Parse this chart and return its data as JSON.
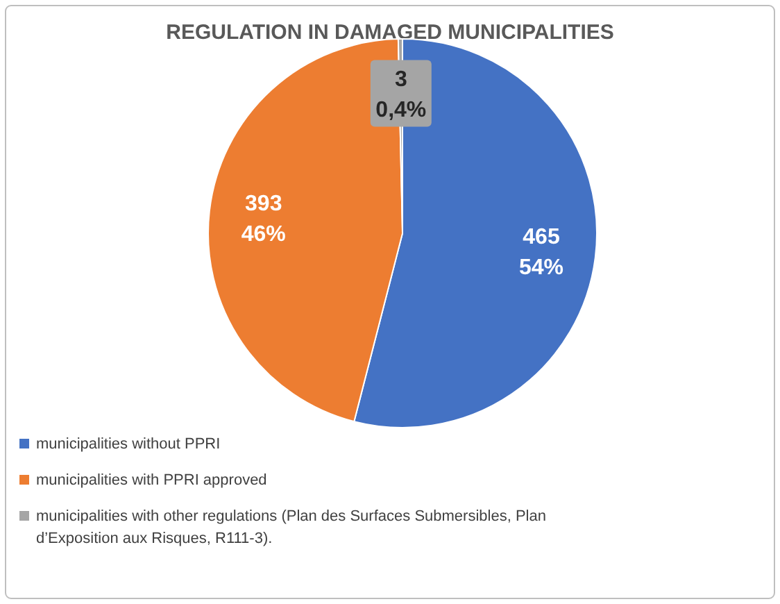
{
  "chart_data": {
    "type": "pie",
    "title": "REGULATION IN DAMAGED MUNICIPALITIES",
    "categories": [
      "municipalities without PPRI",
      "municipalities with PPRI approved",
      "municipalities with other regulations (Plan des Surfaces Submersibles, Plan d’Exposition aux Risques, R111-3)."
    ],
    "values": [
      465,
      393,
      3
    ],
    "colors": [
      "#4472c4",
      "#ed7d31",
      "#a5a5a5"
    ],
    "value_labels": [
      "465\n54%",
      "393\n46%",
      "3\n0,4%"
    ],
    "legend": "bottom"
  }
}
